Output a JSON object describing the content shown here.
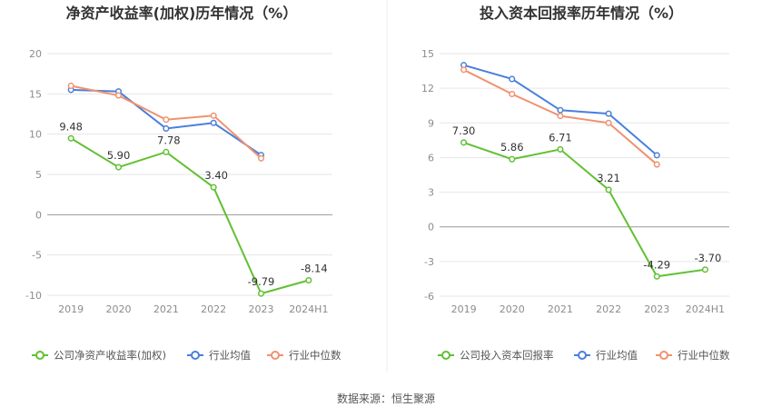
{
  "source_text": "数据来源：恒生聚源",
  "colors": {
    "company": "#62c034",
    "avg": "#4a7fdc",
    "median": "#f0926e",
    "grid": "#e6e6e6",
    "axis_text": "#8c8c8c",
    "title_text": "#333333"
  },
  "chart_data": [
    {
      "type": "line",
      "title": "净资产收益率(加权)历年情况（%）",
      "xlabel": "",
      "ylabel": "",
      "categories": [
        "2019",
        "2020",
        "2021",
        "2022",
        "2023",
        "2024H1"
      ],
      "yticks": [
        "20",
        "15",
        "10",
        "5",
        "0",
        "-5",
        "-10"
      ],
      "ylim": [
        -10,
        20
      ],
      "grid": true,
      "legend_position": "bottom",
      "series": [
        {
          "name": "公司净资产收益率(加权)",
          "color_key": "company",
          "values": [
            9.48,
            5.9,
            7.78,
            3.4,
            -9.79,
            -8.14
          ],
          "labels": [
            "9.48",
            "5.90",
            "7.78",
            "3.40",
            "-9.79",
            "-8.14"
          ]
        },
        {
          "name": "行业均值",
          "color_key": "avg",
          "values": [
            15.5,
            15.3,
            10.7,
            11.4,
            7.4,
            null
          ]
        },
        {
          "name": "行业中位数",
          "color_key": "median",
          "values": [
            16.0,
            14.8,
            11.8,
            12.3,
            7.0,
            null
          ]
        }
      ]
    },
    {
      "type": "line",
      "title": "投入资本回报率历年情况（%）",
      "xlabel": "",
      "ylabel": "",
      "categories": [
        "2019",
        "2020",
        "2021",
        "2022",
        "2023",
        "2024H1"
      ],
      "yticks": [
        "15",
        "12",
        "9",
        "6",
        "3",
        "0",
        "-3",
        "-6"
      ],
      "ylim": [
        -6,
        15
      ],
      "grid": true,
      "legend_position": "bottom",
      "series": [
        {
          "name": "公司投入资本回报率",
          "color_key": "company",
          "values": [
            7.3,
            5.86,
            6.71,
            3.21,
            -4.29,
            -3.7
          ],
          "labels": [
            "7.30",
            "5.86",
            "6.71",
            "3.21",
            "-4.29",
            "-3.70"
          ]
        },
        {
          "name": "行业均值",
          "color_key": "avg",
          "values": [
            14.0,
            12.8,
            10.1,
            9.8,
            6.2,
            null
          ]
        },
        {
          "name": "行业中位数",
          "color_key": "median",
          "values": [
            13.6,
            11.5,
            9.6,
            9.0,
            5.4,
            null
          ]
        }
      ]
    }
  ]
}
